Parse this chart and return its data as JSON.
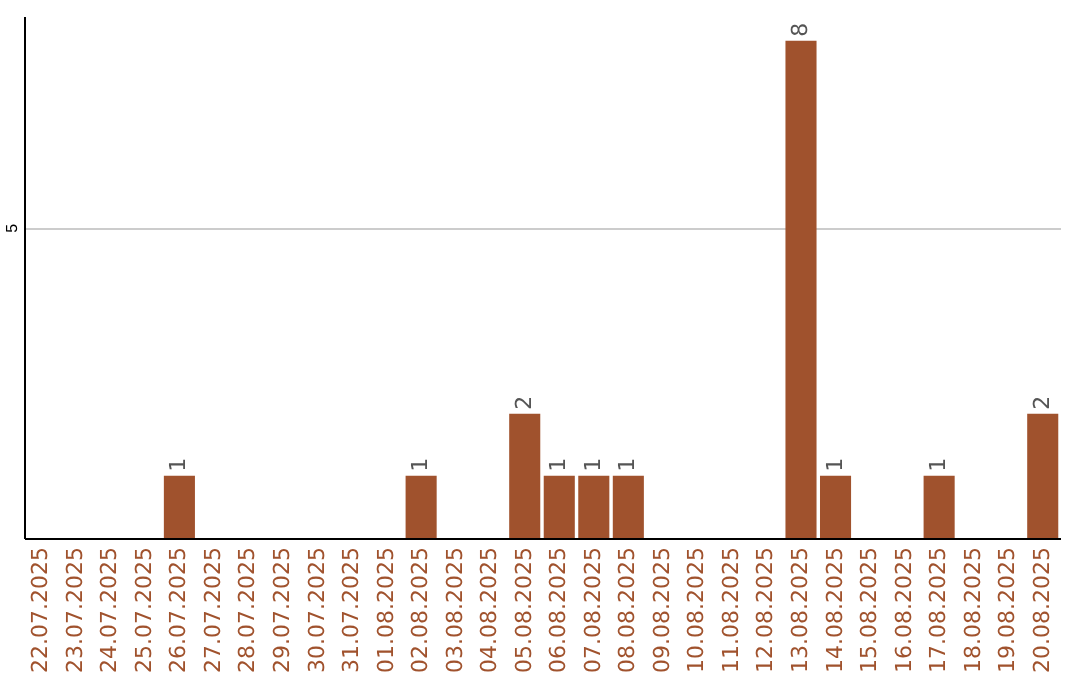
{
  "chart_data": {
    "type": "bar",
    "categories": [
      "22.07.2025",
      "23.07.2025",
      "24.07.2025",
      "25.07.2025",
      "26.07.2025",
      "27.07.2025",
      "28.07.2025",
      "29.07.2025",
      "30.07.2025",
      "31.07.2025",
      "01.08.2025",
      "02.08.2025",
      "03.08.2025",
      "04.08.2025",
      "05.08.2025",
      "06.08.2025",
      "07.08.2025",
      "08.08.2025",
      "09.08.2025",
      "10.08.2025",
      "11.08.2025",
      "12.08.2025",
      "13.08.2025",
      "14.08.2025",
      "15.08.2025",
      "16.08.2025",
      "17.08.2025",
      "18.08.2025",
      "19.08.2025",
      "20.08.2025"
    ],
    "values": [
      0,
      0,
      0,
      0,
      1,
      0,
      0,
      0,
      0,
      0,
      0,
      1,
      0,
      0,
      2,
      1,
      1,
      1,
      0,
      0,
      0,
      0,
      8,
      1,
      0,
      0,
      1,
      0,
      0,
      2
    ],
    "value_labels": [
      null,
      null,
      null,
      null,
      "1",
      null,
      null,
      null,
      null,
      null,
      null,
      "1",
      null,
      null,
      "2",
      "1",
      "1",
      "1",
      null,
      null,
      null,
      null,
      "8",
      "1",
      null,
      null,
      "1",
      null,
      null,
      "2"
    ],
    "color": "#a0522d",
    "ylim": [
      0,
      8.4
    ],
    "yticks": [
      5
    ],
    "grid": "y"
  }
}
